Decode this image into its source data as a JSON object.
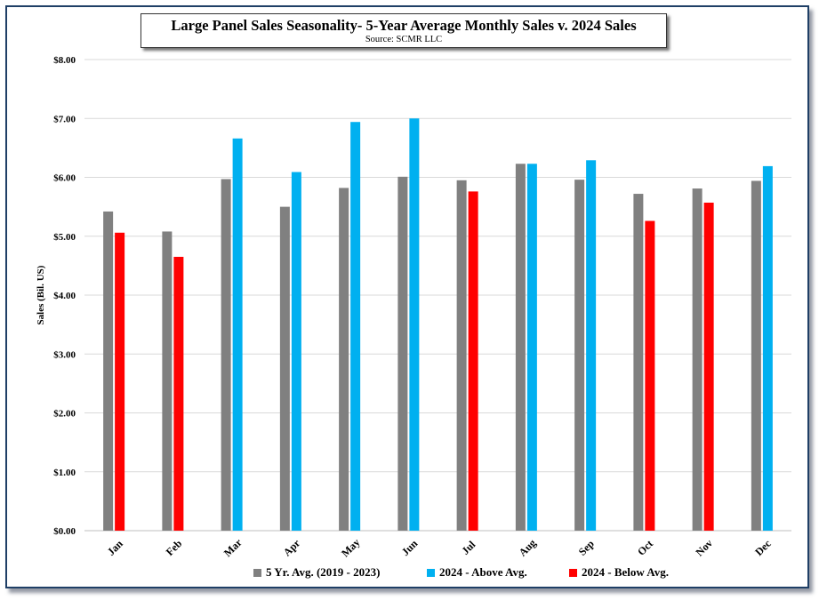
{
  "chart_data": {
    "type": "bar",
    "title": "Large Panel Sales Seasonality- 5-Year Average Monthly Sales v. 2024 Sales",
    "subtitle": "Source: SCMR LLC",
    "xlabel": "",
    "ylabel": "Sales (Bil. US)",
    "ylim": [
      0,
      8
    ],
    "yticks": [
      "$0.00",
      "$1.00",
      "$2.00",
      "$3.00",
      "$4.00",
      "$5.00",
      "$6.00",
      "$7.00",
      "$8.00"
    ],
    "grid": true,
    "legend_position": "bottom",
    "categories": [
      "Jan",
      "Feb",
      "Mar",
      "Apr",
      "May",
      "Jun",
      "Jul",
      "Aug",
      "Sep",
      "Oct",
      "Nov",
      "Dec"
    ],
    "series": [
      {
        "name": "5 Yr. Avg. (2019 - 2023)",
        "color": "#808080",
        "values": [
          5.42,
          5.08,
          5.97,
          5.5,
          5.82,
          6.01,
          5.95,
          6.23,
          5.96,
          5.72,
          5.81,
          5.94
        ]
      },
      {
        "name": "2024",
        "values": [
          5.06,
          4.65,
          6.66,
          6.09,
          6.94,
          7.0,
          5.76,
          6.23,
          6.29,
          5.26,
          5.57,
          6.19
        ]
      }
    ],
    "legend": [
      {
        "label": "5 Yr. Avg. (2019 - 2023)",
        "color": "#808080"
      },
      {
        "label": "2024 - Above Avg.",
        "color": "#00b0f0"
      },
      {
        "label": "2024 - Below Avg.",
        "color": "#ff0000"
      }
    ],
    "colors": {
      "above": "#00b0f0",
      "below": "#ff0000",
      "avg": "#808080",
      "grid": "#d9d9d9"
    }
  }
}
